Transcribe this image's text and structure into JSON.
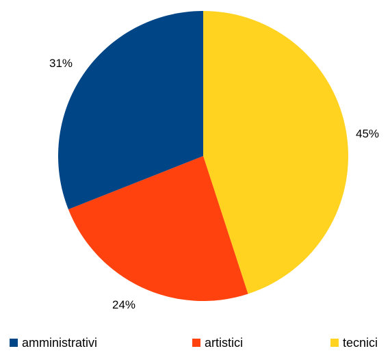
{
  "chart_data": {
    "type": "pie",
    "title": "",
    "legend_position": "bottom",
    "slices": [
      {
        "label": "tecnici",
        "value": 45,
        "value_label": "45%",
        "color": "#ffd320"
      },
      {
        "label": "artistici",
        "value": 24,
        "value_label": "24%",
        "color": "#ff420e"
      },
      {
        "label": "amministrativi",
        "value": 31,
        "value_label": "31%",
        "color": "#004586"
      }
    ],
    "legend": [
      {
        "label": "amministrativi",
        "color": "#004586"
      },
      {
        "label": "artistici",
        "color": "#ff420e"
      },
      {
        "label": "tecnici",
        "color": "#ffd320"
      }
    ]
  }
}
